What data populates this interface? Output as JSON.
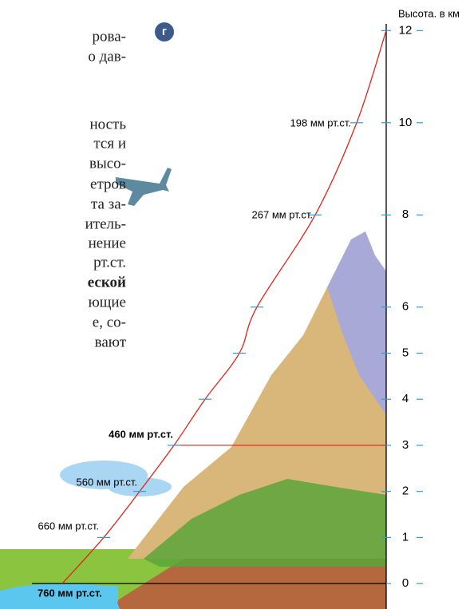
{
  "marker": "г",
  "text_fragments": [
    "рова-",
    "о дав-",
    "ность",
    "тся и",
    "высо-",
    "етров",
    "та за-",
    "итель-",
    "нение",
    "рт.ст.",
    "еской",
    "ющие",
    "е, со-",
    "вают"
  ],
  "chart_data": {
    "type": "line",
    "y_label": "Высота. в км",
    "ylim": [
      -0.5,
      12.3
    ],
    "yticks": [
      0,
      1,
      2,
      3,
      4,
      5,
      6,
      8,
      10,
      12
    ],
    "series": [
      {
        "color": "#e2231a",
        "values": [
          0,
          1,
          2,
          3,
          4,
          5,
          6,
          8,
          10,
          12
        ],
        "value_labels": [
          "760 мм рт.ст.",
          "660 мм рт.ст.",
          "560 мм рт.ст.",
          "460 мм рт.ст.",
          null,
          null,
          null,
          "267 мм рт.ст.",
          "198 мм рт.ст.",
          null
        ]
      }
    ]
  }
}
